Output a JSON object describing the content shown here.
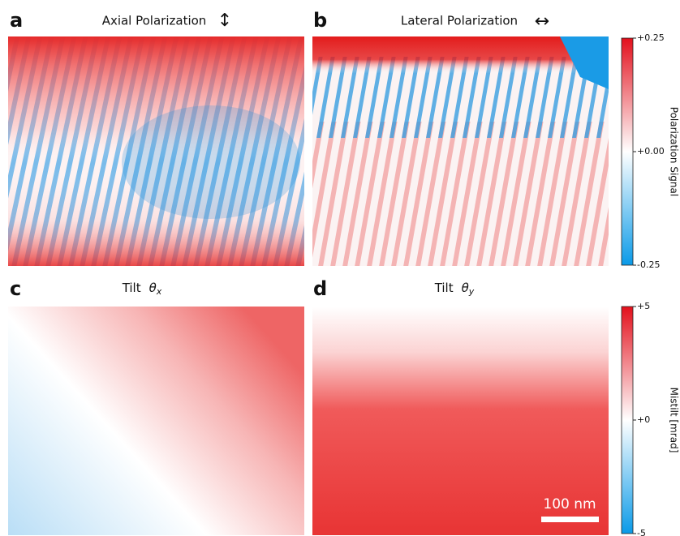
{
  "panels": [
    {
      "label": "a",
      "title": "Axial Polarization"
    },
    {
      "label": "b",
      "title": "Lateral Polarization"
    },
    {
      "label": "c",
      "title": "Tilt",
      "symbol": "θ",
      "subscript": "x"
    },
    {
      "label": "d",
      "title": "Tilt",
      "symbol": "θ",
      "subscript": "y"
    }
  ],
  "colorbars": [
    {
      "label": "Polarization Signal",
      "range": [
        -0.25,
        0.25
      ],
      "ticks": [
        {
          "value": 0.25,
          "label": "+0.25"
        },
        {
          "value": 0,
          "label": "+0.00"
        },
        {
          "value": -0.25,
          "label": "-0.25"
        }
      ]
    },
    {
      "label": "Mistilt [mrad]",
      "range": [
        -5,
        5
      ],
      "ticks": [
        {
          "value": 5,
          "label": "+5"
        },
        {
          "value": 0,
          "label": "+0"
        },
        {
          "value": -5,
          "label": "-5"
        }
      ]
    }
  ],
  "scale_bar": "100 nm"
}
